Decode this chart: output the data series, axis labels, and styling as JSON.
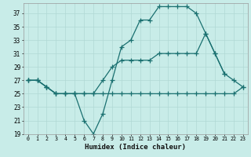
{
  "xlabel": "Humidex (Indice chaleur)",
  "bg_color": "#c8ece8",
  "line_color": "#1a7070",
  "grid_color": "#b0d8d4",
  "ylim": [
    19,
    38
  ],
  "xlim": [
    -0.5,
    23.5
  ],
  "yticks": [
    19,
    21,
    23,
    25,
    27,
    29,
    31,
    33,
    35,
    37
  ],
  "xticks": [
    0,
    1,
    2,
    3,
    4,
    5,
    6,
    7,
    8,
    9,
    10,
    11,
    12,
    13,
    14,
    15,
    16,
    17,
    18,
    19,
    20,
    21,
    22,
    23
  ],
  "line1_x": [
    0,
    1,
    2,
    3,
    4,
    5,
    6,
    7,
    8,
    9,
    10,
    11,
    12,
    13,
    14,
    15,
    16,
    17,
    18,
    19,
    20,
    21
  ],
  "line1_y": [
    27,
    27,
    26,
    25,
    25,
    25,
    21,
    19,
    22,
    27,
    32,
    33,
    36,
    36,
    38,
    38,
    38,
    38,
    37,
    34,
    31,
    28
  ],
  "line2_x": [
    0,
    1,
    2,
    3,
    4,
    5,
    6,
    7,
    8,
    9,
    10,
    11,
    12,
    13,
    14,
    15,
    16,
    17,
    18,
    19,
    20,
    21,
    22,
    23
  ],
  "line2_y": [
    27,
    27,
    26,
    25,
    25,
    25,
    25,
    25,
    25,
    25,
    25,
    25,
    25,
    25,
    25,
    25,
    25,
    25,
    25,
    25,
    25,
    25,
    25,
    26
  ],
  "line3_x": [
    0,
    1,
    2,
    3,
    4,
    5,
    6,
    7,
    8,
    9,
    10,
    11,
    12,
    13,
    14,
    15,
    16,
    17,
    18,
    19,
    20,
    21,
    22,
    23
  ],
  "line3_y": [
    27,
    27,
    26,
    25,
    25,
    25,
    25,
    25,
    27,
    29,
    30,
    30,
    30,
    30,
    31,
    31,
    31,
    31,
    31,
    34,
    31,
    28,
    27,
    26
  ]
}
